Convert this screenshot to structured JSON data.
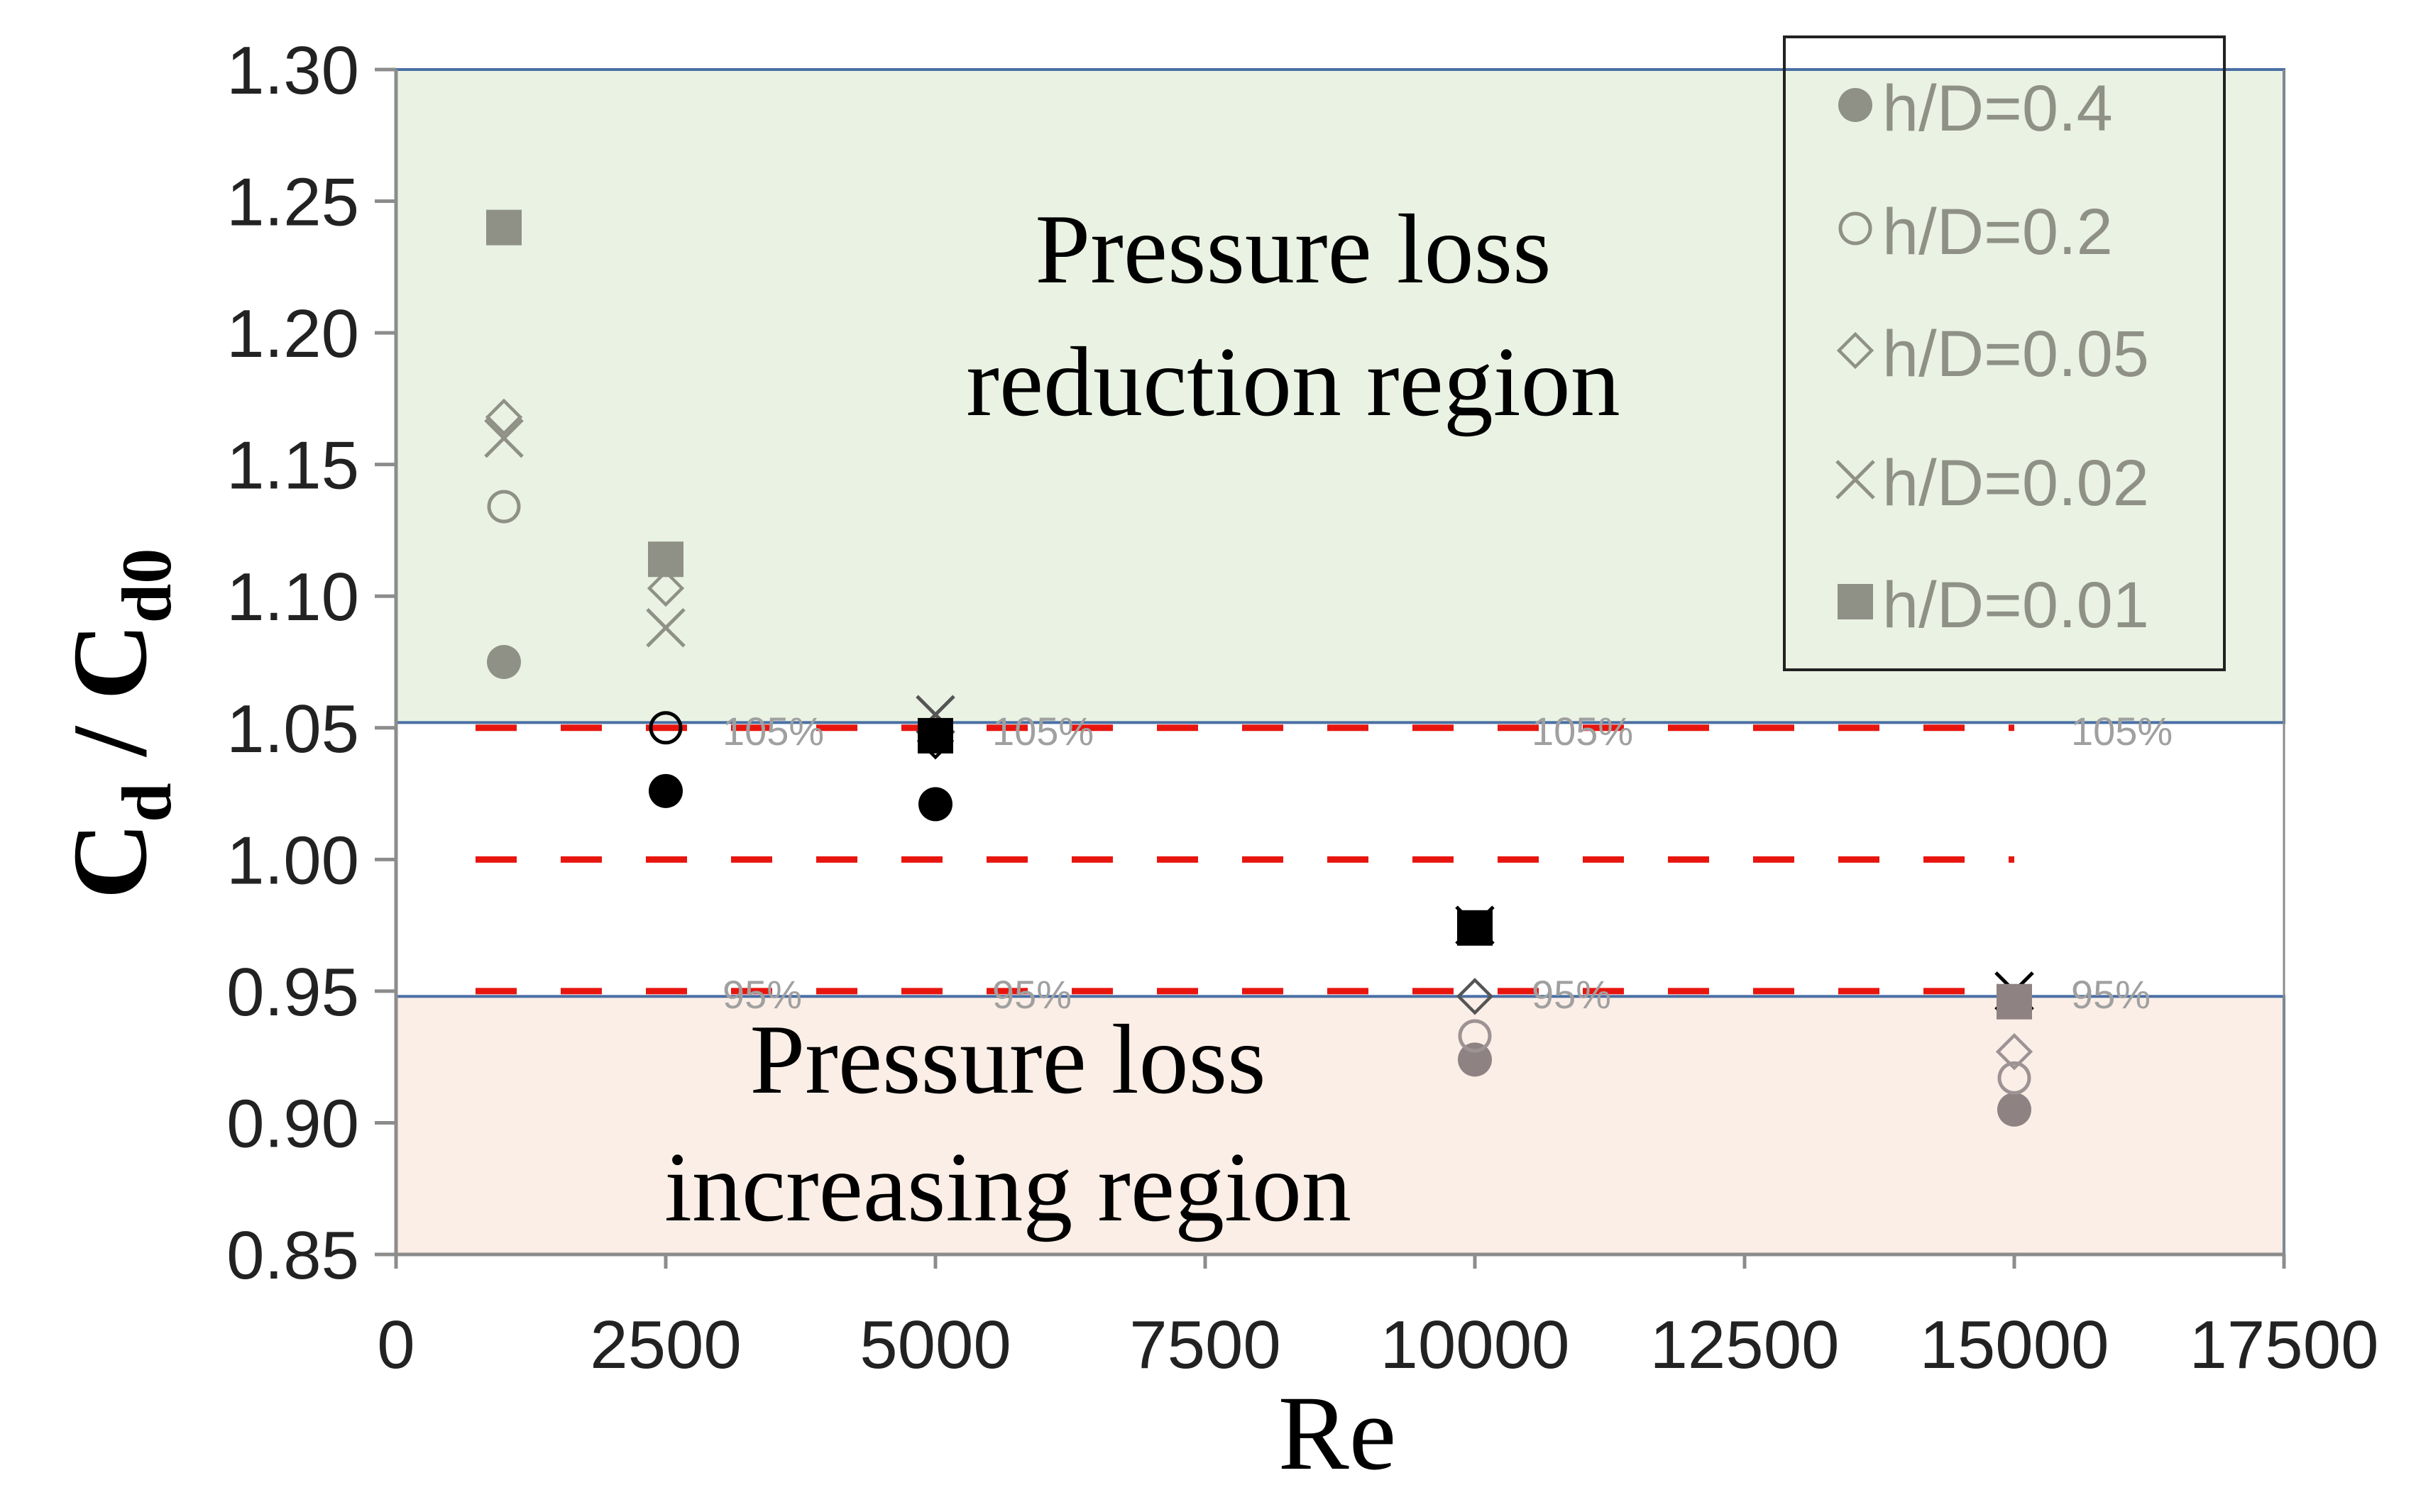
{
  "chart_data": {
    "type": "scatter",
    "title": "",
    "xlabel": "Re",
    "ylabel": {
      "main": "C",
      "sub1": "d",
      "sep": " / C",
      "sub2": "d0"
    },
    "xlim": [
      0,
      17500
    ],
    "ylim": [
      0.85,
      1.3
    ],
    "xticks": [
      "0",
      "2500",
      "5000",
      "7500",
      "10000",
      "12500",
      "15000",
      "17500"
    ],
    "yticks": [
      "1.30",
      "1.25",
      "1.20",
      "1.15",
      "1.10",
      "1.05",
      "1.00",
      "0.95",
      "0.90",
      "0.85"
    ],
    "regions": [
      {
        "name": "reduction",
        "label_line1": "Pressure loss",
        "label_line2": "reduction region",
        "y_from": 1.052,
        "y_to": 1.3,
        "color": "#eaf3e3"
      },
      {
        "name": "increasing",
        "label_line1": "Pressure loss",
        "label_line2": "increasing region",
        "y_from": 0.85,
        "y_to": 0.948,
        "color": "#fbeee6"
      }
    ],
    "reference_lines": [
      {
        "value": 1.05,
        "color": "#e8150f"
      },
      {
        "value": 1.0,
        "color": "#e8150f"
      },
      {
        "value": 0.95,
        "color": "#e8150f"
      }
    ],
    "line_labels": {
      "upper": [
        "105%",
        "105%",
        "105%",
        "105%"
      ],
      "lower": [
        "95%",
        "95%",
        "95%",
        "95%"
      ]
    },
    "series": [
      {
        "name": "h/D=0.4",
        "marker": "circle-filled",
        "points": [
          [
            1000,
            1.075
          ],
          [
            2500,
            1.026
          ],
          [
            5000,
            1.021
          ],
          [
            10000,
            0.924
          ],
          [
            15000,
            0.905
          ]
        ],
        "colors": [
          "#8f9187",
          "#000000",
          "#000000",
          "#8f8283",
          "#8f8283"
        ]
      },
      {
        "name": "h/D=0.2",
        "marker": "circle-open",
        "points": [
          [
            1000,
            1.134
          ],
          [
            2500,
            1.05
          ],
          [
            5000,
            1.047
          ],
          [
            10000,
            0.933
          ],
          [
            15000,
            0.917
          ]
        ],
        "colors": [
          "#8f9187",
          "#000000",
          "#000000",
          "#9d9394",
          "#9d9394"
        ]
      },
      {
        "name": "h/D=0.05",
        "marker": "diamond-open",
        "points": [
          [
            1000,
            1.168
          ],
          [
            2500,
            1.103
          ],
          [
            5000,
            1.045
          ],
          [
            10000,
            0.948
          ],
          [
            15000,
            0.927
          ]
        ],
        "colors": [
          "#8f9187",
          "#8f9187",
          "#000000",
          "#555555",
          "#9d9394"
        ]
      },
      {
        "name": "h/D=0.02",
        "marker": "cross",
        "points": [
          [
            1000,
            1.16
          ],
          [
            2500,
            1.088
          ],
          [
            5000,
            1.055
          ],
          [
            10000,
            0.975
          ],
          [
            15000,
            0.95
          ]
        ],
        "colors": [
          "#8f9187",
          "#8f9187",
          "#555555",
          "#000000",
          "#000000"
        ]
      },
      {
        "name": "h/D=0.01",
        "marker": "square-filled",
        "points": [
          [
            1000,
            1.24
          ],
          [
            2500,
            1.114
          ],
          [
            5000,
            1.047
          ],
          [
            10000,
            0.974
          ],
          [
            15000,
            0.946
          ]
        ],
        "colors": [
          "#8f9187",
          "#8f9187",
          "#000000",
          "#000000",
          "#8f8283"
        ]
      }
    ],
    "legend": {
      "placement": "top-right",
      "entries": [
        "h/D=0.4",
        "h/D=0.2",
        "h/D=0.05",
        "h/D=0.02",
        "h/D=0.01"
      ]
    }
  },
  "colors": {
    "axis": "#8c8c8c",
    "region_border": "#4a6fa5",
    "legend_text": "#8f9187",
    "legend_marker": "#8f9187",
    "dashed": "#e8150f",
    "line_label": "#a0a0a0"
  }
}
